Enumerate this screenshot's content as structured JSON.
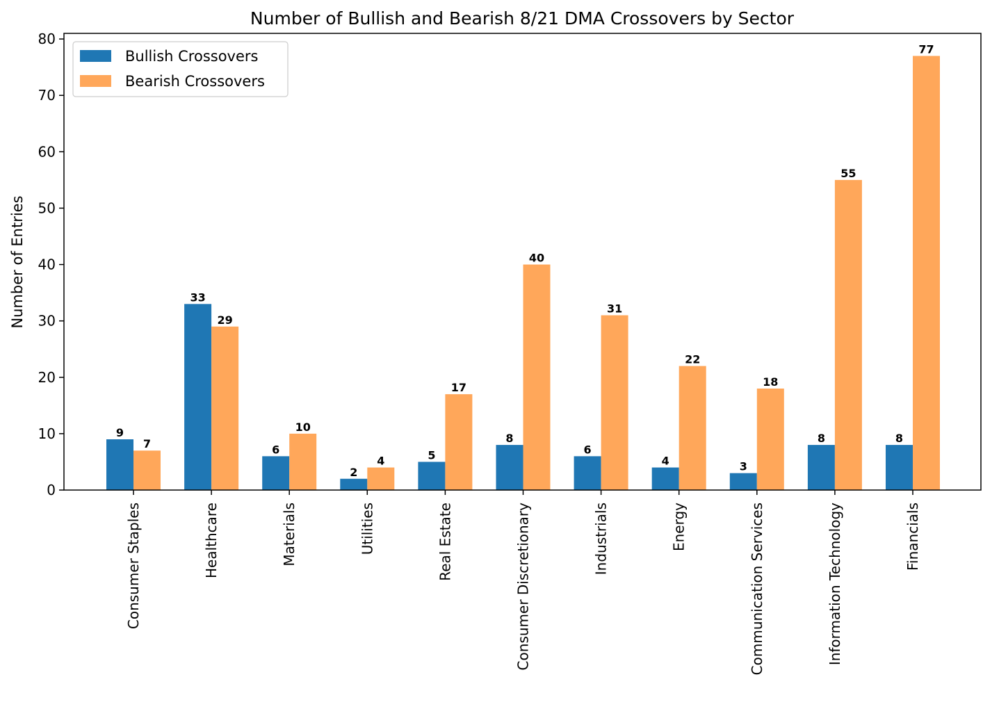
{
  "chart_data": {
    "type": "bar",
    "title": "Number of Bullish and Bearish 8/21 DMA Crossovers by Sector",
    "xlabel": "",
    "ylabel": "Number of Entries",
    "ylim": [
      0,
      81
    ],
    "yticks": [
      0,
      10,
      20,
      30,
      40,
      50,
      60,
      70,
      80
    ],
    "grid": false,
    "legend_position": "top-left",
    "categories": [
      "Consumer Staples",
      "Healthcare",
      "Materials",
      "Utilities",
      "Real Estate",
      "Consumer Discretionary",
      "Industrials",
      "Energy",
      "Communication Services",
      "Information Technology",
      "Financials"
    ],
    "series": [
      {
        "name": "Bullish Crossovers",
        "color": "#1f77b4",
        "values": [
          9,
          33,
          6,
          2,
          5,
          8,
          6,
          4,
          3,
          8,
          8
        ]
      },
      {
        "name": "Bearish Crossovers",
        "color": "#ffa75a",
        "values": [
          7,
          29,
          10,
          4,
          17,
          40,
          31,
          22,
          18,
          55,
          77
        ]
      }
    ]
  }
}
